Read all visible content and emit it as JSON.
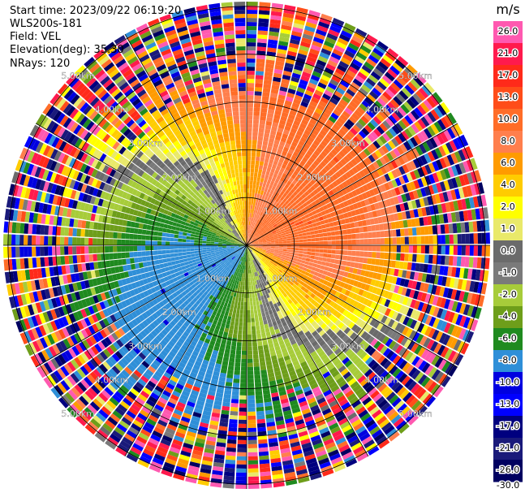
{
  "header": {
    "start_time": "Start time: 2023/09/22 06:19:20",
    "station": "WLS200s-181",
    "field": "Field: VEL",
    "elevation": "Elevation(deg): 35.30",
    "nrays": "NRays: 120"
  },
  "chart_data": {
    "type": "heatmap",
    "subtype": "polar-ppi",
    "field": "VEL",
    "units": "m/s",
    "nrays": 120,
    "range_ring_labels": [
      "1.00km",
      "2.00km",
      "3.00km",
      "4.00km",
      "5.00km"
    ],
    "range_rings_km": [
      1,
      2,
      3,
      4,
      5
    ],
    "max_range_km": 5.1,
    "colorbar": {
      "title": "m/s",
      "tick_labels": [
        "26.0",
        "21.0",
        "17.0",
        "13.0",
        "10.0",
        "8.0",
        "6.0",
        "4.0",
        "2.0",
        "1.0",
        "0.0",
        "-1.0",
        "-2.0",
        "-4.0",
        "-6.0",
        "-8.0",
        "-10.0",
        "-13.0",
        "-17.0",
        "-21.0",
        "-26.0",
        "-30.0"
      ],
      "colors": [
        "#ff59b0",
        "#ff1a4d",
        "#ff2a1a",
        "#ff4d19",
        "#ff6d28",
        "#ff7f4d",
        "#ff9b00",
        "#ffcc00",
        "#ffff00",
        "#e9e96a",
        "#6b6b6b",
        "#7a7a7a",
        "#a7cc3a",
        "#6e9e1a",
        "#1f8a1f",
        "#2f8fd8",
        "#0000e0",
        "#0000ff",
        "#00007f",
        "#1a1a7a",
        "#000060"
      ]
    },
    "velocity_pattern": {
      "description_levels_mps": [
        -8,
        -6,
        -4,
        -2,
        0,
        2,
        4,
        6,
        8,
        10
      ]
    }
  }
}
